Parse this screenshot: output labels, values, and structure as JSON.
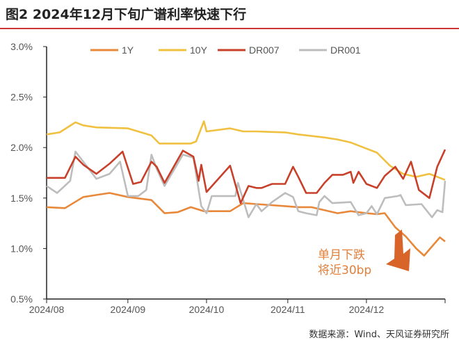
{
  "title": "图2 2024年12月下旬广谱利率快速下行",
  "source": "数据来源：Wind、天风证券研究所",
  "chart_data": {
    "type": "line",
    "title": "图2 2024年12月下旬广谱利率快速下行",
    "xlabel": "",
    "ylabel": "",
    "xlim": [
      "2024-08-01",
      "2024-12-31"
    ],
    "ylim": [
      0.5,
      3.0
    ],
    "x_ticks": [
      "2024-08-01",
      "2024-09-01",
      "2024-10-01",
      "2024-11-01",
      "2024-12-01"
    ],
    "x_tick_labels": [
      "2024/08",
      "2024/09",
      "2024/10",
      "2024/11",
      "2024/12"
    ],
    "y_ticks": [
      0.5,
      1.0,
      1.5,
      2.0,
      2.5,
      3.0
    ],
    "y_tick_labels": [
      "0.5%",
      "1.0%",
      "1.5%",
      "2.0%",
      "2.5%",
      "3.0%"
    ],
    "grid": false,
    "legend": "top",
    "annotation": [
      "单月下跌",
      "将近30bp"
    ],
    "annotation_color": "#D8642A",
    "series": [
      {
        "name": "1Y",
        "color": "#E8883A",
        "points": [
          [
            "2024-08-01",
            1.41
          ],
          [
            "2024-08-08",
            1.4
          ],
          [
            "2024-08-15",
            1.51
          ],
          [
            "2024-08-20",
            1.53
          ],
          [
            "2024-08-25",
            1.55
          ],
          [
            "2024-09-01",
            1.51
          ],
          [
            "2024-09-10",
            1.48
          ],
          [
            "2024-09-15",
            1.35
          ],
          [
            "2024-09-20",
            1.36
          ],
          [
            "2024-09-25",
            1.41
          ],
          [
            "2024-09-30",
            1.37
          ],
          [
            "2024-10-10",
            1.37
          ],
          [
            "2024-10-15",
            1.45
          ],
          [
            "2024-10-20",
            1.44
          ],
          [
            "2024-10-31",
            1.42
          ],
          [
            "2024-11-05",
            1.41
          ],
          [
            "2024-11-10",
            1.41
          ],
          [
            "2024-11-20",
            1.35
          ],
          [
            "2024-11-25",
            1.37
          ],
          [
            "2024-12-01",
            1.35
          ],
          [
            "2024-12-05",
            1.34
          ],
          [
            "2024-12-08",
            1.35
          ],
          [
            "2024-12-12",
            1.21
          ],
          [
            "2024-12-16",
            1.12
          ],
          [
            "2024-12-20",
            1.0
          ],
          [
            "2024-12-23",
            0.93
          ],
          [
            "2024-12-27",
            1.05
          ],
          [
            "2024-12-29",
            1.11
          ],
          [
            "2024-12-31",
            1.07
          ]
        ]
      },
      {
        "name": "10Y",
        "color": "#F0C040",
        "points": [
          [
            "2024-08-01",
            2.13
          ],
          [
            "2024-08-06",
            2.15
          ],
          [
            "2024-08-12",
            2.25
          ],
          [
            "2024-08-15",
            2.22
          ],
          [
            "2024-08-20",
            2.2
          ],
          [
            "2024-09-01",
            2.19
          ],
          [
            "2024-09-10",
            2.12
          ],
          [
            "2024-09-13",
            2.04
          ],
          [
            "2024-09-25",
            2.04
          ],
          [
            "2024-09-27",
            2.06
          ],
          [
            "2024-09-30",
            2.26
          ],
          [
            "2024-10-01",
            2.16
          ],
          [
            "2024-10-10",
            2.19
          ],
          [
            "2024-10-15",
            2.16
          ],
          [
            "2024-10-20",
            2.16
          ],
          [
            "2024-10-31",
            2.15
          ],
          [
            "2024-11-05",
            2.13
          ],
          [
            "2024-11-15",
            2.1
          ],
          [
            "2024-11-20",
            2.08
          ],
          [
            "2024-11-25",
            2.05
          ],
          [
            "2024-12-01",
            1.99
          ],
          [
            "2024-12-05",
            1.95
          ],
          [
            "2024-12-10",
            1.82
          ],
          [
            "2024-12-15",
            1.74
          ],
          [
            "2024-12-20",
            1.71
          ],
          [
            "2024-12-25",
            1.74
          ],
          [
            "2024-12-31",
            1.68
          ]
        ]
      },
      {
        "name": "DR007",
        "color": "#C8402A",
        "points": [
          [
            "2024-08-01",
            1.7
          ],
          [
            "2024-08-08",
            1.7
          ],
          [
            "2024-08-12",
            1.91
          ],
          [
            "2024-08-15",
            1.83
          ],
          [
            "2024-08-20",
            1.74
          ],
          [
            "2024-08-25",
            1.84
          ],
          [
            "2024-08-30",
            1.96
          ],
          [
            "2024-09-03",
            1.64
          ],
          [
            "2024-09-06",
            1.66
          ],
          [
            "2024-09-10",
            1.86
          ],
          [
            "2024-09-12",
            1.81
          ],
          [
            "2024-09-15",
            1.65
          ],
          [
            "2024-09-22",
            1.97
          ],
          [
            "2024-09-26",
            1.91
          ],
          [
            "2024-09-28",
            1.67
          ],
          [
            "2024-09-29",
            1.83
          ],
          [
            "2024-10-01",
            1.56
          ],
          [
            "2024-10-10",
            1.82
          ],
          [
            "2024-10-14",
            1.45
          ],
          [
            "2024-10-17",
            1.62
          ],
          [
            "2024-10-20",
            1.6
          ],
          [
            "2024-10-22",
            1.6
          ],
          [
            "2024-10-26",
            1.64
          ],
          [
            "2024-10-31",
            1.64
          ],
          [
            "2024-11-03",
            1.81
          ],
          [
            "2024-11-05",
            1.71
          ],
          [
            "2024-11-08",
            1.55
          ],
          [
            "2024-11-12",
            1.55
          ],
          [
            "2024-11-15",
            1.65
          ],
          [
            "2024-11-18",
            1.73
          ],
          [
            "2024-11-22",
            1.73
          ],
          [
            "2024-11-25",
            1.76
          ],
          [
            "2024-11-26",
            1.65
          ],
          [
            "2024-11-28",
            1.76
          ],
          [
            "2024-12-01",
            1.64
          ],
          [
            "2024-12-05",
            1.6
          ],
          [
            "2024-12-08",
            1.72
          ],
          [
            "2024-12-12",
            1.81
          ],
          [
            "2024-12-15",
            1.69
          ],
          [
            "2024-12-18",
            1.86
          ],
          [
            "2024-12-21",
            1.58
          ],
          [
            "2024-12-25",
            1.5
          ],
          [
            "2024-12-28",
            1.81
          ],
          [
            "2024-12-31",
            1.98
          ]
        ]
      },
      {
        "name": "DR001",
        "color": "#BDBDBD",
        "points": [
          [
            "2024-08-01",
            1.62
          ],
          [
            "2024-08-05",
            1.55
          ],
          [
            "2024-08-10",
            1.67
          ],
          [
            "2024-08-12",
            1.96
          ],
          [
            "2024-08-15",
            1.86
          ],
          [
            "2024-08-20",
            1.69
          ],
          [
            "2024-08-25",
            1.74
          ],
          [
            "2024-08-29",
            1.86
          ],
          [
            "2024-09-01",
            1.52
          ],
          [
            "2024-09-05",
            1.52
          ],
          [
            "2024-09-08",
            1.58
          ],
          [
            "2024-09-10",
            1.93
          ],
          [
            "2024-09-12",
            1.79
          ],
          [
            "2024-09-15",
            1.62
          ],
          [
            "2024-09-22",
            1.93
          ],
          [
            "2024-09-26",
            1.9
          ],
          [
            "2024-09-29",
            1.42
          ],
          [
            "2024-10-01",
            1.35
          ],
          [
            "2024-10-03",
            1.52
          ],
          [
            "2024-10-12",
            1.52
          ],
          [
            "2024-10-13",
            1.65
          ],
          [
            "2024-10-17",
            1.31
          ],
          [
            "2024-10-20",
            1.44
          ],
          [
            "2024-10-22",
            1.37
          ],
          [
            "2024-10-26",
            1.46
          ],
          [
            "2024-10-31",
            1.55
          ],
          [
            "2024-11-03",
            1.51
          ],
          [
            "2024-11-05",
            1.37
          ],
          [
            "2024-11-08",
            1.35
          ],
          [
            "2024-11-12",
            1.33
          ],
          [
            "2024-11-13",
            1.46
          ],
          [
            "2024-11-15",
            1.52
          ],
          [
            "2024-11-18",
            1.45
          ],
          [
            "2024-11-25",
            1.46
          ],
          [
            "2024-11-28",
            1.33
          ],
          [
            "2024-12-01",
            1.35
          ],
          [
            "2024-12-03",
            1.42
          ],
          [
            "2024-12-05",
            1.34
          ],
          [
            "2024-12-08",
            1.5
          ],
          [
            "2024-12-13",
            1.52
          ],
          [
            "2024-12-14",
            1.53
          ],
          [
            "2024-12-16",
            1.43
          ],
          [
            "2024-12-22",
            1.44
          ],
          [
            "2024-12-26",
            1.31
          ],
          [
            "2024-12-28",
            1.38
          ],
          [
            "2024-12-30",
            1.36
          ],
          [
            "2024-12-31",
            1.67
          ]
        ]
      }
    ]
  }
}
